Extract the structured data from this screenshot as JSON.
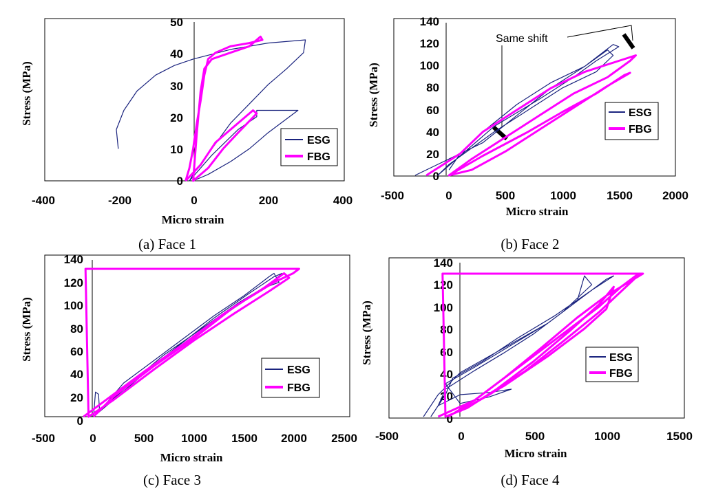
{
  "colors": {
    "esg": "#1a237e",
    "fbg": "#ff00ff",
    "axis": "#000000"
  },
  "chart_data": [
    {
      "type": "line",
      "caption": "(a) Face 1",
      "xlabel": "Micro strain",
      "ylabel": "Stress (MPa)",
      "xlim": [
        -400,
        400
      ],
      "ylim": [
        0,
        50
      ],
      "xticks": [
        -400,
        -200,
        0,
        200,
        400
      ],
      "yticks": [
        0,
        10,
        20,
        30,
        40,
        50
      ],
      "xtick_labels": [
        "-400",
        "-200",
        "0",
        "200",
        "400"
      ],
      "ytick_labels": [
        "0",
        "10",
        "20",
        "30",
        "40",
        "50"
      ],
      "legend": [
        "ESG",
        "FBG"
      ],
      "annotations": [],
      "series": [
        {
          "name": "ESG",
          "points": [
            [
              -200,
              10
            ],
            [
              -205,
              16
            ],
            [
              -185,
              22
            ],
            [
              -150,
              28
            ],
            [
              -100,
              33
            ],
            [
              -50,
              36
            ],
            [
              0,
              38
            ],
            [
              100,
              41
            ],
            [
              200,
              43
            ],
            [
              300,
              44
            ],
            [
              295,
              40
            ],
            [
              250,
              35
            ],
            [
              200,
              30
            ],
            [
              150,
              24
            ],
            [
              100,
              18
            ],
            [
              50,
              10
            ],
            [
              0,
              2
            ],
            [
              -10,
              0
            ],
            [
              50,
              8
            ],
            [
              120,
              16
            ],
            [
              170,
              20
            ],
            [
              170,
              22
            ],
            [
              280,
              22
            ],
            [
              200,
              15
            ],
            [
              150,
              10
            ],
            [
              100,
              6
            ],
            [
              40,
              2
            ],
            [
              0,
              0
            ]
          ]
        },
        {
          "name": "FBG",
          "points": [
            [
              -20,
              0
            ],
            [
              20,
              5
            ],
            [
              60,
              12
            ],
            [
              100,
              16
            ],
            [
              160,
              22
            ],
            [
              170,
              21
            ],
            [
              120,
              15
            ],
            [
              80,
              10
            ],
            [
              40,
              4
            ],
            [
              0,
              0
            ],
            [
              10,
              15
            ],
            [
              20,
              28
            ],
            [
              30,
              35
            ],
            [
              50,
              38
            ],
            [
              100,
              40
            ],
            [
              150,
              42
            ],
            [
              180,
              45
            ],
            [
              185,
              44
            ],
            [
              150,
              43
            ],
            [
              100,
              42
            ],
            [
              60,
              40
            ],
            [
              40,
              38
            ],
            [
              30,
              33
            ],
            [
              20,
              25
            ],
            [
              10,
              18
            ],
            [
              0,
              10
            ],
            [
              -10,
              4
            ],
            [
              -20,
              0
            ]
          ]
        }
      ]
    },
    {
      "type": "line",
      "caption": "(b) Face 2",
      "xlabel": "Micro strain",
      "ylabel": "Stress (MPa)",
      "xlim": [
        -500,
        2000
      ],
      "ylim": [
        0,
        140
      ],
      "xticks": [
        -500,
        0,
        500,
        1000,
        1500,
        2000
      ],
      "yticks": [
        0,
        20,
        40,
        60,
        80,
        100,
        120,
        140
      ],
      "xtick_labels": [
        "-500",
        "0",
        "500",
        "1000",
        "1500",
        "2000"
      ],
      "ytick_labels": [
        "0",
        "20",
        "40",
        "60",
        "80",
        "100",
        "120",
        "140"
      ],
      "legend": [
        "ESG",
        "FBG"
      ],
      "annotations": [
        "Same shift"
      ],
      "series": [
        {
          "name": "ESG",
          "points": [
            [
              -300,
              0
            ],
            [
              0,
              15
            ],
            [
              300,
              30
            ],
            [
              600,
              55
            ],
            [
              900,
              80
            ],
            [
              1200,
              100
            ],
            [
              1400,
              115
            ],
            [
              1450,
              110
            ],
            [
              1300,
              95
            ],
            [
              1000,
              80
            ],
            [
              700,
              60
            ],
            [
              400,
              40
            ],
            [
              200,
              25
            ],
            [
              0,
              10
            ],
            [
              -100,
              0
            ],
            [
              100,
              18
            ],
            [
              400,
              45
            ],
            [
              800,
              70
            ],
            [
              1100,
              90
            ],
            [
              1300,
              105
            ],
            [
              1500,
              118
            ],
            [
              1450,
              120
            ],
            [
              1200,
              100
            ],
            [
              900,
              85
            ],
            [
              600,
              65
            ],
            [
              300,
              40
            ],
            [
              100,
              20
            ],
            [
              0,
              5
            ]
          ]
        },
        {
          "name": "FBG",
          "points": [
            [
              -200,
              0
            ],
            [
              100,
              20
            ],
            [
              300,
              40
            ],
            [
              600,
              60
            ],
            [
              900,
              80
            ],
            [
              1200,
              95
            ],
            [
              1500,
              105
            ],
            [
              1650,
              110
            ],
            [
              1600,
              105
            ],
            [
              1400,
              90
            ],
            [
              1100,
              75
            ],
            [
              800,
              55
            ],
            [
              500,
              35
            ],
            [
              200,
              15
            ],
            [
              0,
              0
            ],
            [
              300,
              18
            ],
            [
              700,
              40
            ],
            [
              1000,
              58
            ],
            [
              1300,
              75
            ],
            [
              1550,
              92
            ],
            [
              1600,
              94
            ],
            [
              1400,
              82
            ],
            [
              1100,
              62
            ],
            [
              800,
              42
            ],
            [
              500,
              22
            ],
            [
              200,
              5
            ],
            [
              0,
              0
            ]
          ]
        }
      ]
    },
    {
      "type": "line",
      "caption": "(c) Face 3",
      "xlabel": "Micro strain",
      "ylabel": "Stress (MPa)",
      "xlim": [
        -500,
        2500
      ],
      "ylim": [
        0,
        140
      ],
      "xticks": [
        -500,
        0,
        500,
        1000,
        1500,
        2000,
        2500
      ],
      "yticks": [
        0,
        20,
        40,
        60,
        80,
        100,
        120,
        140
      ],
      "xtick_labels": [
        "-500",
        "0",
        "500",
        "1000",
        "1500",
        "2000",
        "2500"
      ],
      "ytick_labels": [
        "0",
        "20",
        "40",
        "60",
        "80",
        "100",
        "120",
        "140"
      ],
      "legend": [
        "ESG",
        "FBG"
      ],
      "annotations": [],
      "series": [
        {
          "name": "ESG",
          "points": [
            [
              0,
              0
            ],
            [
              20,
              22
            ],
            [
              50,
              20
            ],
            [
              60,
              5
            ],
            [
              300,
              30
            ],
            [
              600,
              50
            ],
            [
              900,
              70
            ],
            [
              1200,
              90
            ],
            [
              1500,
              108
            ],
            [
              1750,
              125
            ],
            [
              1800,
              128
            ],
            [
              1850,
              120
            ],
            [
              1700,
              115
            ],
            [
              1400,
              97
            ],
            [
              1100,
              78
            ],
            [
              800,
              58
            ],
            [
              500,
              38
            ],
            [
              200,
              15
            ],
            [
              0,
              0
            ],
            [
              400,
              32
            ],
            [
              800,
              60
            ],
            [
              1200,
              88
            ],
            [
              1550,
              110
            ],
            [
              1800,
              125
            ],
            [
              1880,
              128
            ],
            [
              1750,
              118
            ],
            [
              1450,
              102
            ],
            [
              1100,
              80
            ],
            [
              700,
              55
            ],
            [
              300,
              25
            ],
            [
              0,
              0
            ]
          ]
        },
        {
          "name": "FBG",
          "points": [
            [
              -100,
              0
            ],
            [
              200,
              20
            ],
            [
              500,
              40
            ],
            [
              900,
              65
            ],
            [
              1300,
              92
            ],
            [
              1700,
              115
            ],
            [
              1900,
              128
            ],
            [
              1950,
              124
            ],
            [
              1750,
              112
            ],
            [
              1400,
              92
            ],
            [
              1000,
              68
            ],
            [
              600,
              42
            ],
            [
              200,
              15
            ],
            [
              -50,
              0
            ],
            [
              -80,
              132
            ],
            [
              2050,
              132
            ],
            [
              1990,
              128
            ],
            [
              1800,
              120
            ],
            [
              1400,
              98
            ],
            [
              1000,
              70
            ],
            [
              600,
              45
            ],
            [
              200,
              18
            ],
            [
              0,
              0
            ]
          ]
        }
      ]
    },
    {
      "type": "line",
      "caption": "(d) Face 4",
      "xlabel": "Micro strain",
      "ylabel": "Stress (MPa)",
      "xlim": [
        -500,
        1500
      ],
      "ylim": [
        0,
        140
      ],
      "xticks": [
        -500,
        0,
        500,
        1000,
        1500
      ],
      "yticks": [
        0,
        20,
        40,
        60,
        80,
        100,
        120,
        140
      ],
      "xtick_labels": [
        "-500",
        "0",
        "500",
        "1000",
        "1500"
      ],
      "ytick_labels": [
        "0",
        "20",
        "40",
        "60",
        "80",
        "100",
        "120",
        "140"
      ],
      "legend": [
        "ESG",
        "FBG"
      ],
      "annotations": [],
      "series": [
        {
          "name": "ESG",
          "points": [
            [
              -250,
              0
            ],
            [
              -150,
              20
            ],
            [
              0,
              40
            ],
            [
              200,
              55
            ],
            [
              400,
              70
            ],
            [
              600,
              85
            ],
            [
              800,
              105
            ],
            [
              850,
              128
            ],
            [
              900,
              120
            ],
            [
              700,
              95
            ],
            [
              500,
              75
            ],
            [
              300,
              58
            ],
            [
              100,
              42
            ],
            [
              -100,
              25
            ],
            [
              -150,
              10
            ],
            [
              0,
              20
            ],
            [
              200,
              22
            ],
            [
              350,
              25
            ],
            [
              200,
              18
            ],
            [
              0,
              12
            ],
            [
              -100,
              30
            ],
            [
              100,
              45
            ],
            [
              350,
              65
            ],
            [
              600,
              85
            ],
            [
              850,
              110
            ],
            [
              1000,
              125
            ],
            [
              1050,
              128
            ],
            [
              900,
              115
            ],
            [
              650,
              92
            ],
            [
              400,
              72
            ],
            [
              150,
              50
            ],
            [
              -50,
              35
            ],
            [
              -100,
              20
            ],
            [
              -200,
              0
            ]
          ]
        },
        {
          "name": "FBG",
          "points": [
            [
              -150,
              0
            ],
            [
              100,
              15
            ],
            [
              400,
              45
            ],
            [
              700,
              75
            ],
            [
              950,
              100
            ],
            [
              1100,
              118
            ],
            [
              1200,
              128
            ],
            [
              1230,
              130
            ],
            [
              1150,
              120
            ],
            [
              950,
              95
            ],
            [
              700,
              68
            ],
            [
              450,
              42
            ],
            [
              200,
              20
            ],
            [
              0,
              5
            ],
            [
              300,
              28
            ],
            [
              600,
              55
            ],
            [
              850,
              80
            ],
            [
              1000,
              98
            ],
            [
              1050,
              118
            ],
            [
              950,
              102
            ],
            [
              750,
              78
            ],
            [
              500,
              50
            ],
            [
              250,
              25
            ],
            [
              50,
              8
            ],
            [
              -100,
              0
            ],
            [
              -120,
              130
            ],
            [
              1250,
              130
            ],
            [
              1200,
              126
            ],
            [
              1000,
              110
            ],
            [
              800,
              90
            ],
            [
              550,
              62
            ],
            [
              300,
              35
            ],
            [
              100,
              15
            ],
            [
              -80,
              0
            ]
          ]
        }
      ]
    }
  ]
}
